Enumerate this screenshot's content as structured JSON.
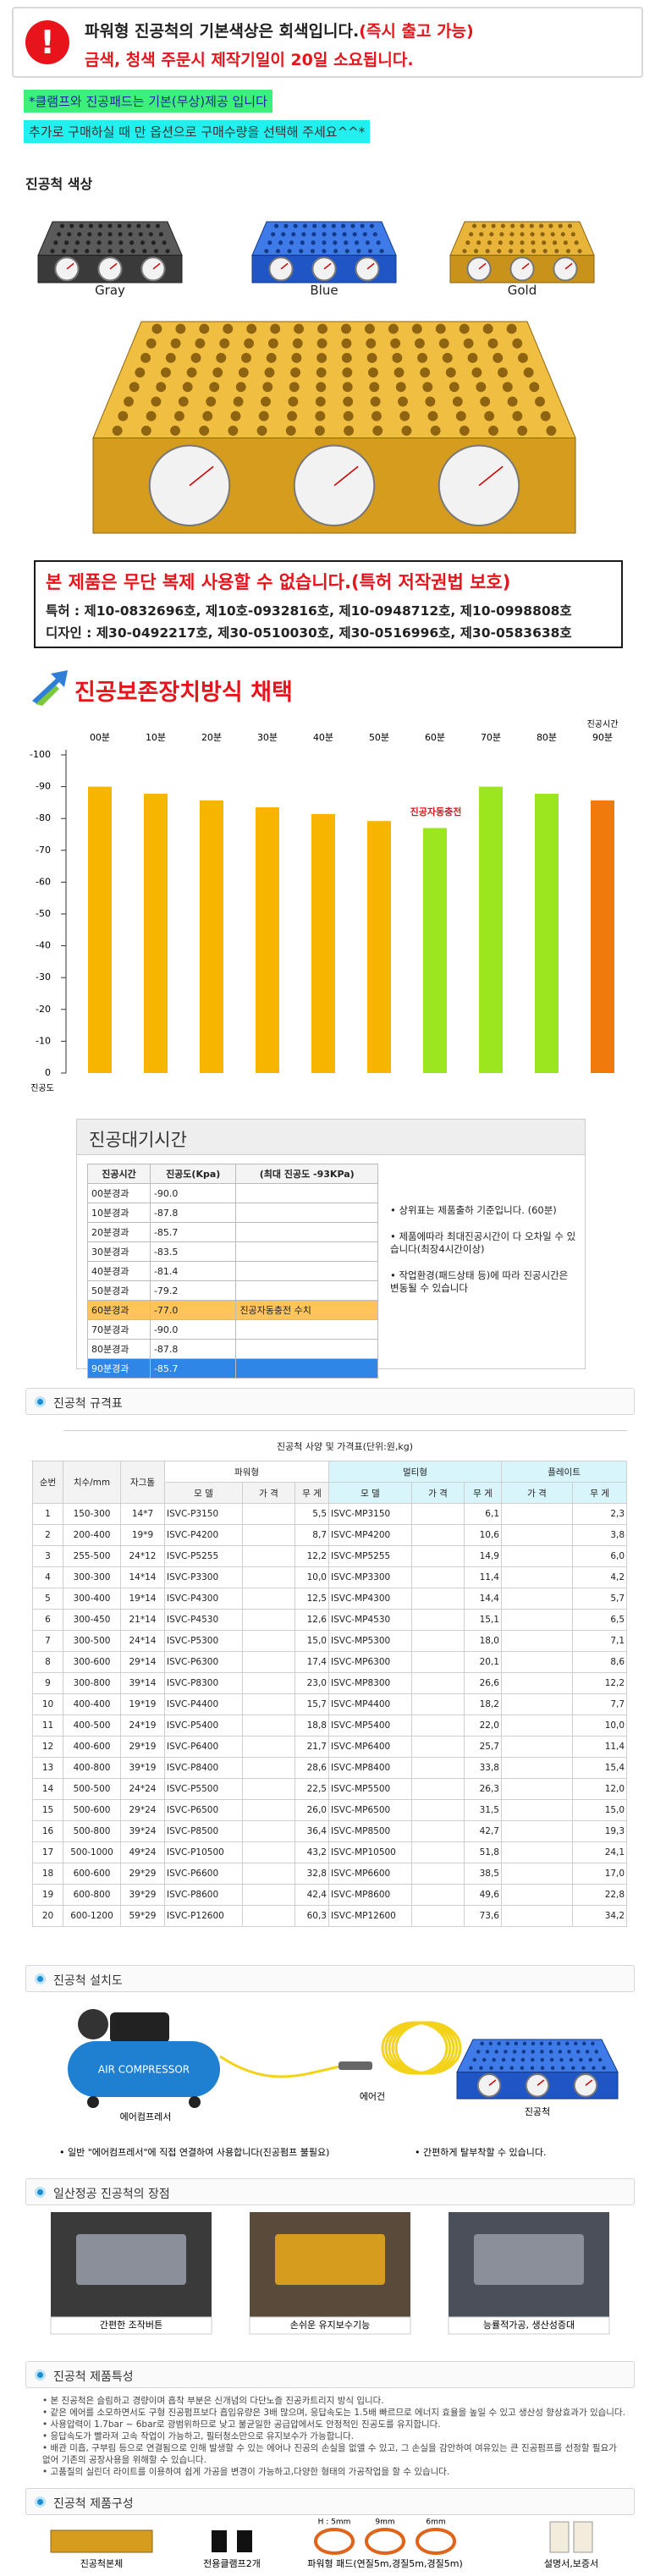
{
  "banner": {
    "line1": "파워형 진공척의 기본색상은 회색입니다.",
    "line1_highlight": "(즉시 출고 가능)",
    "line2": "금색, 청색 주문시 제작기일이 20일 소요됩니다."
  },
  "notes": [
    "*클램프와 진공패드는 기본(무상)제공 입니다",
    "추가로 구매하실 때 만 옵션으로 구매수량을 선택해 주세요^^*"
  ],
  "colors": {
    "title": "진공척 색상",
    "items": [
      "Gray",
      "Blue",
      "Gold"
    ]
  },
  "patent": {
    "warning": "본 제품은 무단 복제 사용할 수 없습니다.(특허 저작권법 보호)",
    "patents": "특허 : 제10-0832696호, 제10호-0932816호, 제10-0948712호, 제10-0998808호",
    "designs": "디자인 : 제30-0492217호, 제30-0510030호, 제30-0516996호, 제30-0583638호"
  },
  "chart_data": {
    "type": "bar",
    "title": "진공보존장치방식 채택",
    "x_label": "진공시간",
    "y_label": "진공도",
    "annotation": "진공자동충전",
    "categories": [
      "00분",
      "10분",
      "20분",
      "30분",
      "40분",
      "50분",
      "60분",
      "70분",
      "80분",
      "90분"
    ],
    "values": [
      -90,
      -87.8,
      -85.7,
      -83.5,
      -81.4,
      -79.2,
      -77,
      -90,
      -87.8,
      -85.7
    ],
    "colors": [
      "#f7b500",
      "#f7b500",
      "#f7b500",
      "#f7b500",
      "#f7b500",
      "#f7b500",
      "#9be61e",
      "#9be61e",
      "#9be61e",
      "#f07a0c"
    ],
    "ylim": [
      0,
      -100
    ],
    "yticks": [
      -100,
      -90,
      -80,
      -70,
      -60,
      -50,
      -40,
      -30,
      -20,
      -10,
      0
    ],
    "grid": false
  },
  "vacuum_table": {
    "title": "진공대기시간",
    "headers": [
      "진공시간",
      "진공도(Kpa)",
      "(최대 진공도 -93KPa)"
    ],
    "rows": [
      [
        "00분경과",
        "-90.0"
      ],
      [
        "10분경과",
        "-87.8"
      ],
      [
        "20분경과",
        "-85.7"
      ],
      [
        "30분경과",
        "-83.5"
      ],
      [
        "40분경과",
        "-81.4"
      ],
      [
        "50분경과",
        "-79.2"
      ],
      [
        "60분경과",
        "-77.0",
        "진공자동충전 수치"
      ],
      [
        "70분경과",
        "-90.0"
      ],
      [
        "80분경과",
        "-87.8"
      ],
      [
        "90분경과",
        "-85.7"
      ]
    ],
    "notes": [
      "• 상위표는 제품출하 기준입니다. (60분)",
      "• 제품에따라 최대진공시간이 다 오차일 수 있습니다(최장4시간이상)",
      "• 작업환경(패드상태 등)에 따라 진공시간은 변동될 수 있습니다"
    ]
  },
  "spec": {
    "section": "진공척 규격표",
    "title": "진공척 사양 및 가격표(단위:원,kg)",
    "columns": [
      "순번",
      "치수/mm",
      "자그돌"
    ],
    "groups": [
      "파워형",
      "멀티형",
      "플레이트"
    ],
    "power_sub": [
      "모 델",
      "가 격",
      "무 게"
    ],
    "multi_sub": [
      "모 델",
      "가 격",
      "무 게"
    ],
    "plate_sub": [
      "가 격",
      "무 게"
    ],
    "rows": [
      [
        "1",
        "150-300",
        "14*7",
        "ISVC-P3150",
        "5,5",
        "ISVC-MP3150",
        "6,1",
        "2,3"
      ],
      [
        "2",
        "200-400",
        "19*9",
        "ISVC-P4200",
        "8,7",
        "ISVC-MP4200",
        "10,6",
        "3,8"
      ],
      [
        "3",
        "255-500",
        "24*12",
        "ISVC-P5255",
        "12,2",
        "ISVC-MP5255",
        "14,9",
        "6,0"
      ],
      [
        "4",
        "300-300",
        "14*14",
        "ISVC-P3300",
        "10,0",
        "ISVC-MP3300",
        "11,4",
        "4,2"
      ],
      [
        "5",
        "300-400",
        "19*14",
        "ISVC-P4300",
        "12,5",
        "ISVC-MP4300",
        "14,4",
        "5,7"
      ],
      [
        "6",
        "300-450",
        "21*14",
        "ISVC-P4530",
        "12,6",
        "ISVC-MP4530",
        "15,1",
        "6,5"
      ],
      [
        "7",
        "300-500",
        "24*14",
        "ISVC-P5300",
        "15,0",
        "ISVC-MP5300",
        "18,0",
        "7,1"
      ],
      [
        "8",
        "300-600",
        "29*14",
        "ISVC-P6300",
        "17,4",
        "ISVC-MP6300",
        "20,1",
        "8,6"
      ],
      [
        "9",
        "300-800",
        "39*14",
        "ISVC-P8300",
        "23,0",
        "ISVC-MP8300",
        "26,6",
        "12,2"
      ],
      [
        "10",
        "400-400",
        "19*19",
        "ISVC-P4400",
        "15,7",
        "ISVC-MP4400",
        "18,2",
        "7,7"
      ],
      [
        "11",
        "400-500",
        "24*19",
        "ISVC-P5400",
        "18,8",
        "ISVC-MP5400",
        "22,0",
        "10,0"
      ],
      [
        "12",
        "400-600",
        "29*19",
        "ISVC-P6400",
        "21,7",
        "ISVC-MP6400",
        "25,7",
        "11,4"
      ],
      [
        "13",
        "400-800",
        "39*19",
        "ISVC-P8400",
        "28,6",
        "ISVC-MP8400",
        "33,8",
        "15,4"
      ],
      [
        "14",
        "500-500",
        "24*24",
        "ISVC-P5500",
        "22,5",
        "ISVC-MP5500",
        "26,3",
        "12,0"
      ],
      [
        "15",
        "500-600",
        "29*24",
        "ISVC-P6500",
        "26,0",
        "ISVC-MP6500",
        "31,5",
        "15,0"
      ],
      [
        "16",
        "500-800",
        "39*24",
        "ISVC-P8500",
        "36,4",
        "ISVC-MP8500",
        "42,7",
        "19,3"
      ],
      [
        "17",
        "500-1000",
        "49*24",
        "ISVC-P10500",
        "43,2",
        "ISVC-MP10500",
        "51,8",
        "24,1"
      ],
      [
        "18",
        "600-600",
        "29*29",
        "ISVC-P6600",
        "32,8",
        "ISVC-MP6600",
        "38,5",
        "17,0"
      ],
      [
        "19",
        "600-800",
        "39*29",
        "ISVC-P8600",
        "42,4",
        "ISVC-MP8600",
        "49,6",
        "22,8"
      ],
      [
        "20",
        "600-1200",
        "59*29",
        "ISVC-P12600",
        "60,3",
        "ISVC-MP12600",
        "73,6",
        "34,2"
      ]
    ]
  },
  "install": {
    "section": "진공척 설치도",
    "compressor": "AIR COMPRESSOR",
    "labels": [
      "에어컴프레서",
      "에어건",
      "진공척"
    ],
    "notes": [
      "• 일반 \"에어컴프레서\"에 직접 연결하여 사용합니다(진공펌프 불필요)",
      "• 간편하게 탈부착할 수 있습니다."
    ]
  },
  "advantages": {
    "section": "일산정공 진공척의 장점",
    "items": [
      "간편한 조작버튼",
      "손쉬운 유지보수기능",
      "능률적가공, 생산성증대"
    ]
  },
  "features": {
    "section": "진공척 제품특성",
    "items": [
      "• 본 진공척은 슬림하고 경량이며 흡착 부분은 신개념의 다단노즐 진공카트리지 방식 입니다.",
      "• 같은 에어를 소모하면서도 구형 진공펌프보다 흡입유량은 3배 많으며, 응답속도는 1.5배 빠르므로 에너지 효율을 높일 수 있고 생산성 향상효과가 있습니다.",
      "• 사용압력이 1.7bar ~ 6bar로 광범위하므로 낮고 불균일한 공급압에서도 안정적인 진공도를 유지합니다.",
      "• 응답속도가 빨라져 고속 작업이 가능하고, 필터청소만으로 유지보수가 가능합니다.",
      "• 배관 미흡, 구부림 등으로 연결됨으로 인해 발생할 수 있는 에어나 진공의 손실을 없앨 수 있고, 그 손실을 감안하여 여유있는 큰 진공펌프를 선정할 필요가 없어 기존의 공장사용을 위해할 수 있습니다.",
      "• 고품질의 실린더 라이트를 이용하여 쉽게 가공을 변경이 가능하고,다양한 형태의 가공작업을 할 수 있습니다."
    ]
  },
  "composition": {
    "section": "진공척 제품구성",
    "items": [
      "진공척본체",
      "전용클램프2개",
      "파워형 패드(연질5m,경질5m,경질5m)",
      "설명서,보증서"
    ],
    "pad_sizes": [
      "H : 5mm",
      "9mm",
      "6mm"
    ]
  }
}
